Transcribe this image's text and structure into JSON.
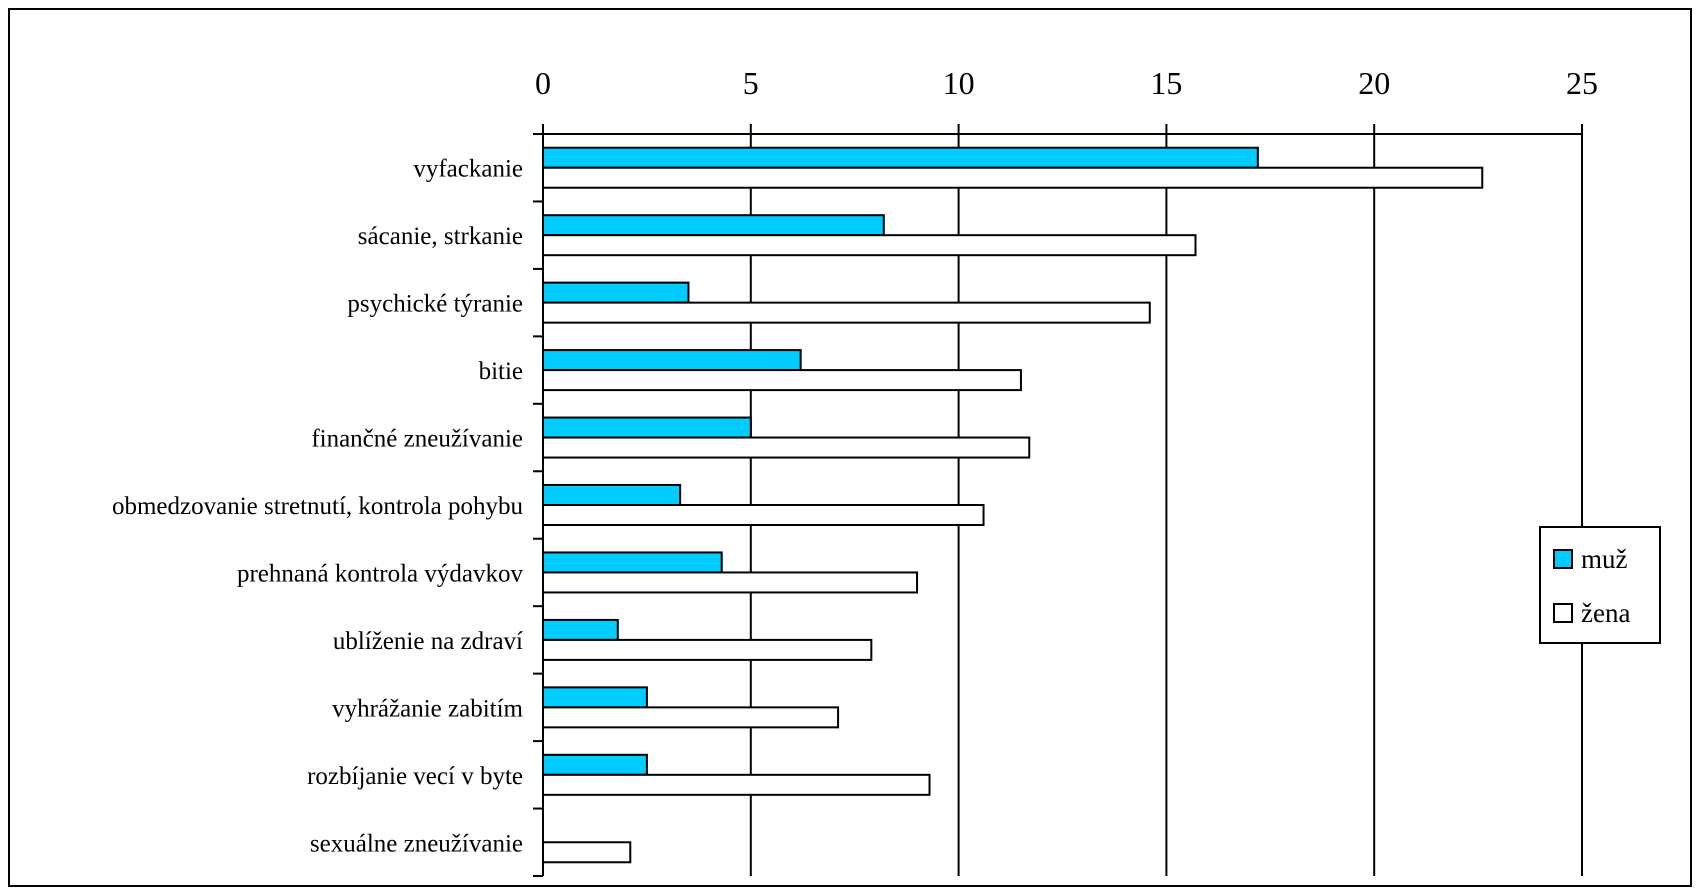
{
  "chart_data": {
    "type": "bar",
    "orientation": "horizontal",
    "categories": [
      "vyfackanie",
      "sácanie, strkanie",
      "psychické týranie",
      "bitie",
      "finančné zneužívanie",
      "obmedzovanie stretnutí, kontrola pohybu",
      "prehnaná kontrola výdavkov",
      "ublíženie na zdraví",
      "vyhrážanie zabitím",
      "rozbíjanie vecí v byte",
      "sexuálne zneužívanie"
    ],
    "series": [
      {
        "name": "muž",
        "color": "#00ccff",
        "values": [
          17.2,
          8.2,
          3.5,
          6.2,
          5.0,
          3.3,
          4.3,
          1.8,
          2.5,
          2.5,
          0
        ]
      },
      {
        "name": "žena",
        "color": "#ffffff",
        "values": [
          22.6,
          15.7,
          14.6,
          11.5,
          11.7,
          10.6,
          9.0,
          7.9,
          7.1,
          9.3,
          2.1
        ]
      }
    ],
    "xlim": [
      0,
      25
    ],
    "xticks": [
      "0",
      "5",
      "10",
      "15",
      "20",
      "25"
    ],
    "x_axis_position": "top",
    "grid": true,
    "legend_position": "right"
  }
}
